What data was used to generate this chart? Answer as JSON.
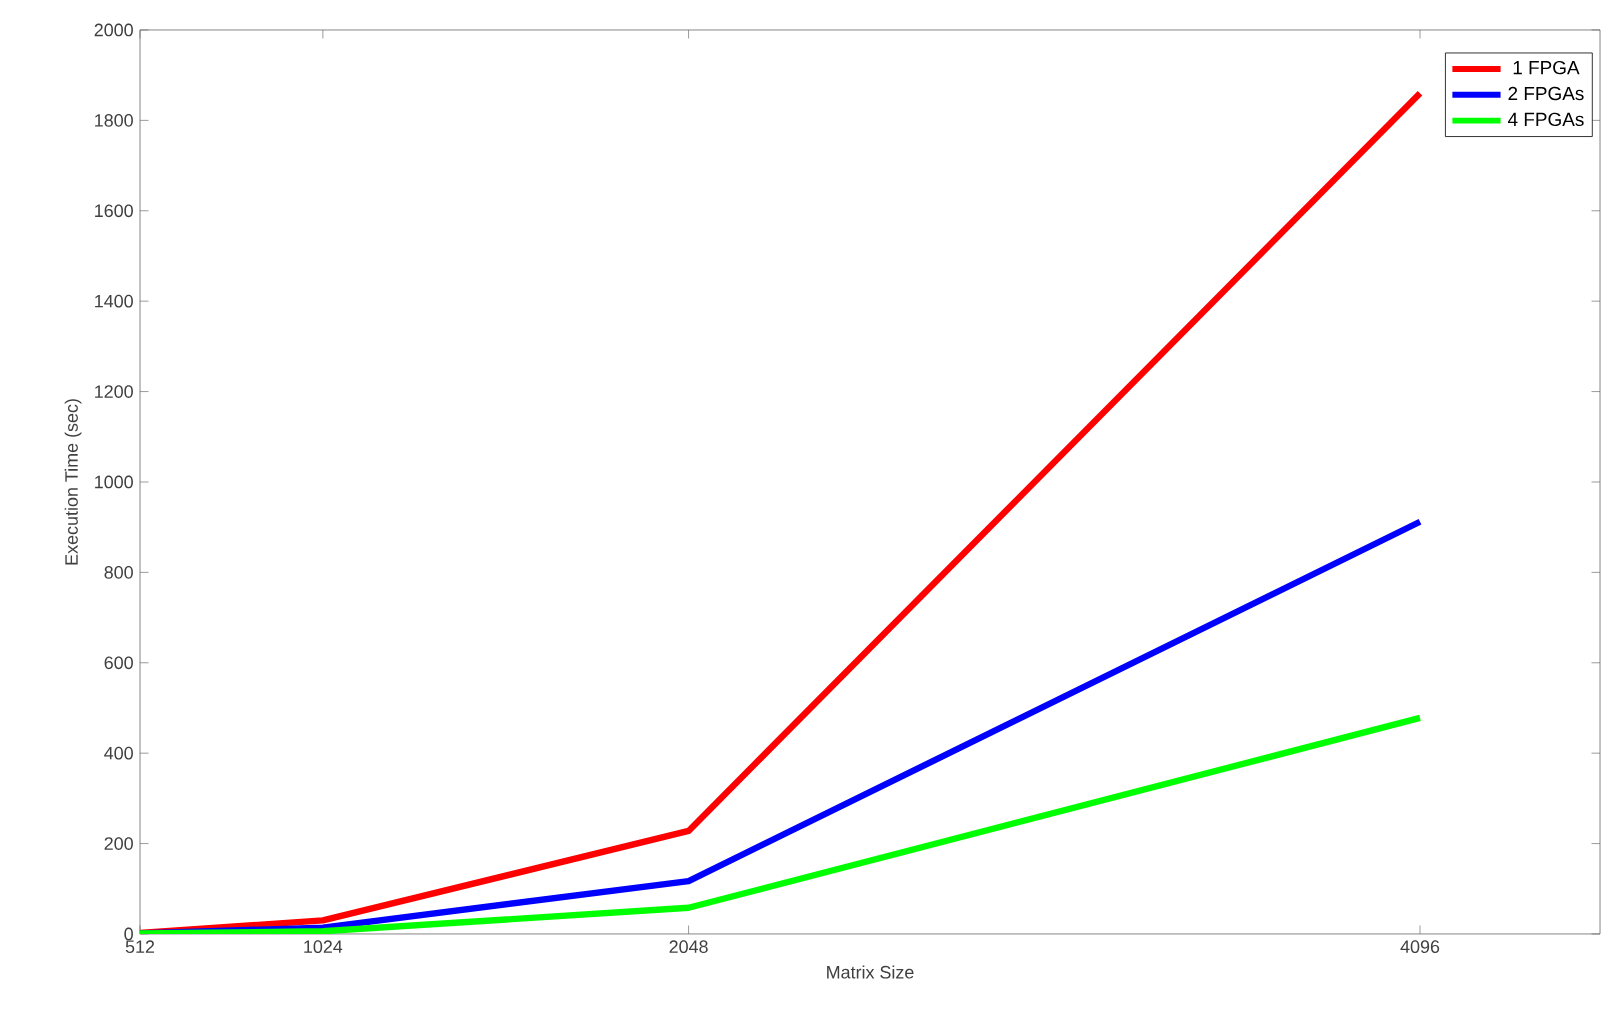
{
  "chart_data": {
    "type": "line",
    "xlabel": "Matrix Size",
    "ylabel": "Execution Time (sec)",
    "x": [
      512,
      1024,
      2048,
      4096
    ],
    "series": [
      {
        "name": "1 FPGA",
        "color": "#ff0000",
        "values": [
          2,
          30,
          228,
          1860
        ]
      },
      {
        "name": "2 FPGAs",
        "color": "#0000ff",
        "values": [
          1,
          14,
          117,
          912
        ]
      },
      {
        "name": "4 FPGAs",
        "color": "#00ff00",
        "values": [
          1,
          6,
          58,
          478
        ]
      }
    ],
    "xlim": [
      512,
      4600
    ],
    "ylim": [
      0,
      2000
    ],
    "xticks": [
      512,
      1024,
      2048,
      4096
    ],
    "yticks": [
      0,
      200,
      400,
      600,
      800,
      1000,
      1200,
      1400,
      1600,
      1800,
      2000
    ],
    "grid": false,
    "legend": "top right",
    "marker": "none",
    "line_style": "solid"
  }
}
